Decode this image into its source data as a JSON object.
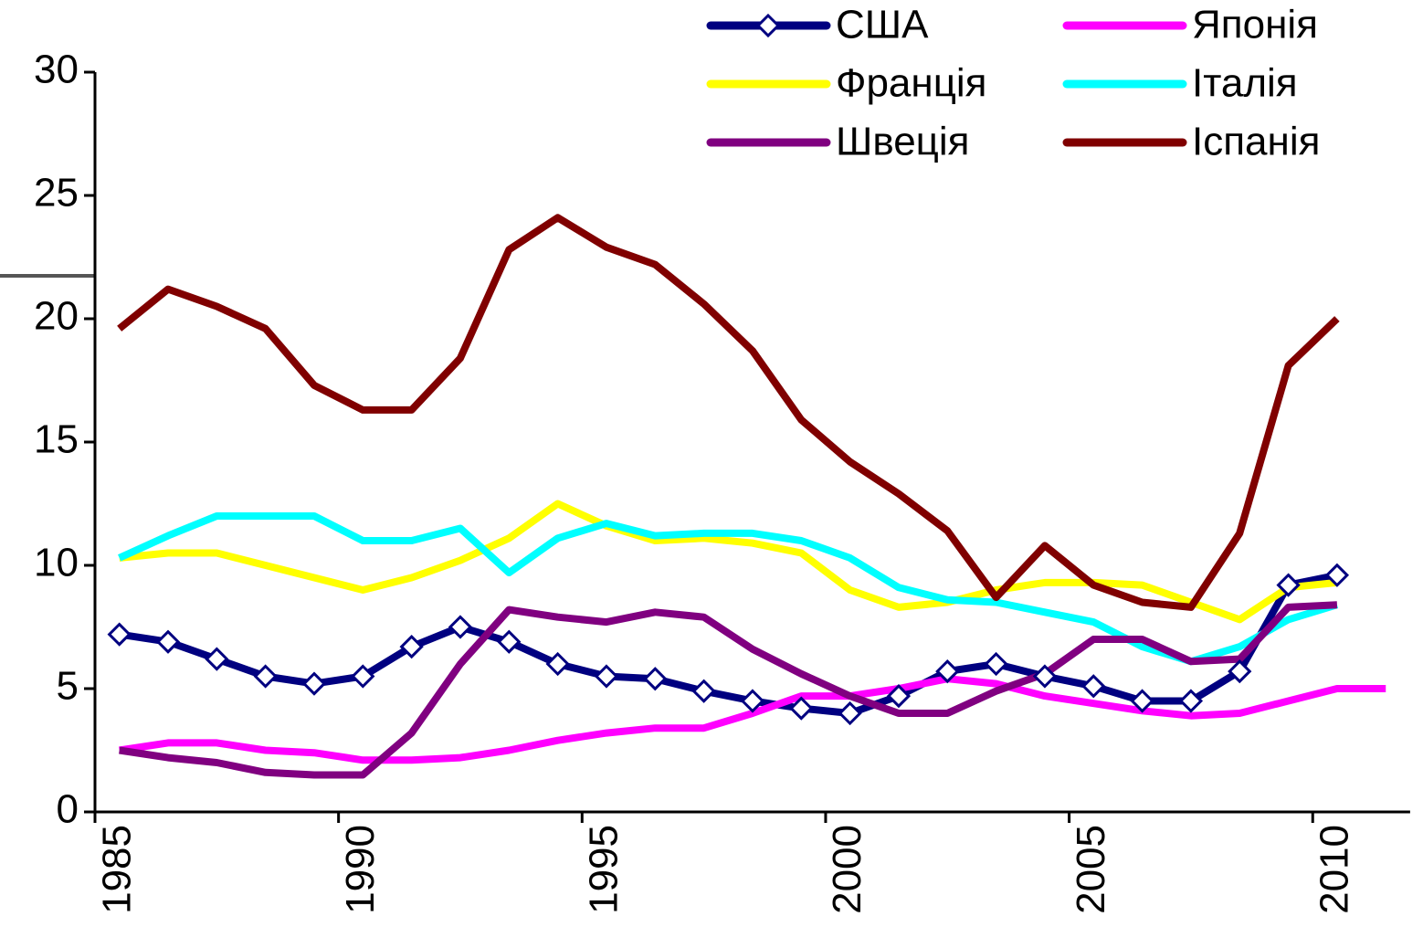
{
  "chart_data": {
    "type": "line",
    "categories": [
      "1985",
      null,
      null,
      null,
      null,
      "1990",
      null,
      null,
      null,
      null,
      "1995",
      null,
      null,
      null,
      null,
      "2000",
      null,
      null,
      null,
      null,
      "2005",
      null,
      null,
      null,
      null,
      "2010",
      null
    ],
    "series": [
      {
        "name": "США",
        "color": "#000080",
        "marker": "diamond",
        "values": [
          7.2,
          6.9,
          6.2,
          5.5,
          5.2,
          5.5,
          6.7,
          7.5,
          6.9,
          6.0,
          5.5,
          5.4,
          4.9,
          4.5,
          4.2,
          4.0,
          4.7,
          5.7,
          6.0,
          5.5,
          5.1,
          4.5,
          4.5,
          5.7,
          9.2,
          9.6,
          null
        ]
      },
      {
        "name": "Японія",
        "color": "#ff00ff",
        "values": [
          2.5,
          2.8,
          2.8,
          2.5,
          2.4,
          2.1,
          2.1,
          2.2,
          2.5,
          2.9,
          3.2,
          3.4,
          3.4,
          4.0,
          4.7,
          4.7,
          5.0,
          5.4,
          5.2,
          4.7,
          4.4,
          4.1,
          3.9,
          4.0,
          4.5,
          5.0,
          5.0
        ]
      },
      {
        "name": "Франція",
        "color": "#ffff00",
        "values": [
          10.3,
          10.5,
          10.5,
          10.0,
          9.5,
          9.0,
          9.5,
          10.2,
          11.1,
          12.5,
          11.6,
          11.0,
          11.1,
          10.9,
          10.5,
          9.0,
          8.3,
          8.5,
          9.0,
          9.3,
          9.3,
          9.2,
          8.5,
          7.8,
          9.1,
          9.3,
          null
        ]
      },
      {
        "name": "Італія",
        "color": "#00ffff",
        "values": [
          10.3,
          11.2,
          12.0,
          12.0,
          12.0,
          11.0,
          11.0,
          11.5,
          9.7,
          11.1,
          11.7,
          11.2,
          11.3,
          11.3,
          11.0,
          10.3,
          9.1,
          8.6,
          8.5,
          8.1,
          7.7,
          6.7,
          6.1,
          6.7,
          7.8,
          8.4,
          null
        ]
      },
      {
        "name": "Швеція",
        "color": "#800080",
        "values": [
          2.5,
          2.2,
          2.0,
          1.6,
          1.5,
          1.5,
          3.2,
          6.0,
          8.2,
          7.9,
          7.7,
          8.1,
          7.9,
          6.6,
          5.6,
          4.7,
          4.0,
          4.0,
          4.9,
          5.6,
          7.0,
          7.0,
          6.1,
          6.2,
          8.3,
          8.4,
          null
        ]
      },
      {
        "name": "Іспанія",
        "color": "#800000",
        "values": [
          19.6,
          21.2,
          20.5,
          19.6,
          17.3,
          16.3,
          16.3,
          18.4,
          22.8,
          24.1,
          22.9,
          22.2,
          20.6,
          18.7,
          15.9,
          14.2,
          12.9,
          11.4,
          8.7,
          10.8,
          9.2,
          8.5,
          8.3,
          11.3,
          18.1,
          20.0,
          null
        ]
      }
    ],
    "ylim": [
      0,
      30
    ],
    "yticks": [
      0,
      5,
      10,
      15,
      20,
      25,
      30
    ],
    "legend": "top-right"
  }
}
